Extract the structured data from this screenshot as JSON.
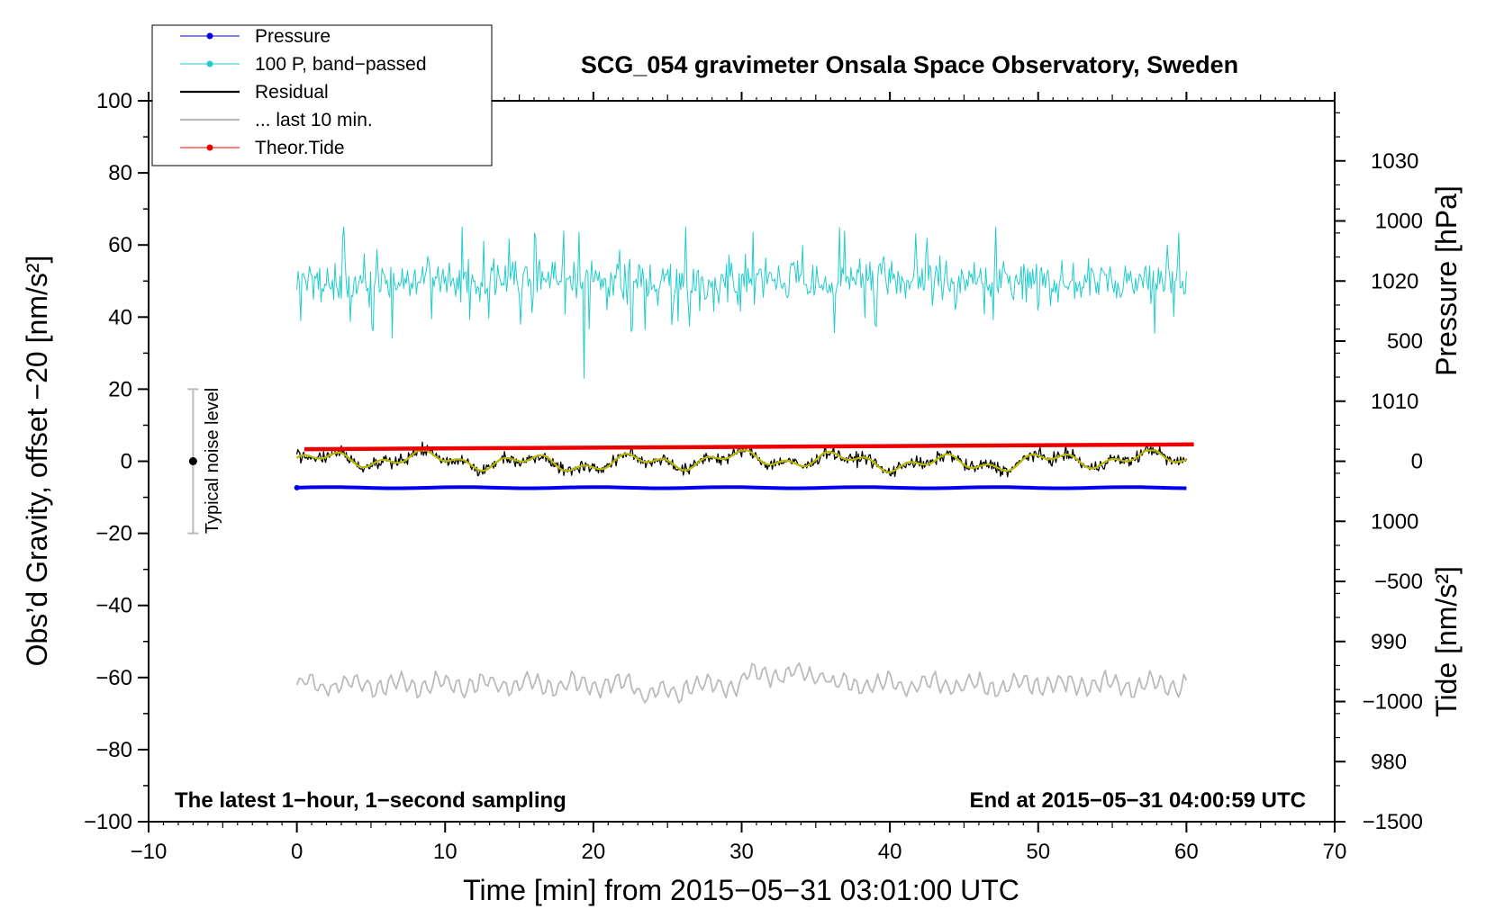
{
  "chart_data": {
    "type": "line",
    "title": "SCG_054 gravimeter Onsala Space Observatory, Sweden",
    "xlabel": "Time [min] from 2015−05−31 03:01:00 UTC",
    "ylabel": "Obs’d Gravity, offset −20 [nm/s²]",
    "ylabel_right_pressure": "Pressure [hPa]",
    "ylabel_right_tide": "Tide [nm/s²]",
    "xlim": [
      -10,
      70
    ],
    "ylim": [
      -100,
      100
    ],
    "pressure_axis": {
      "min": 975,
      "max": 1035
    },
    "tide_axis": {
      "min": -1500,
      "max": 1500
    },
    "x_ticks": [
      -10,
      0,
      10,
      20,
      30,
      40,
      50,
      60,
      70
    ],
    "x_tick_labels": [
      "−10",
      "0",
      "10",
      "20",
      "30",
      "40",
      "50",
      "60",
      "70"
    ],
    "y_ticks": [
      -100,
      -80,
      -60,
      -40,
      -20,
      0,
      20,
      40,
      60,
      80,
      100
    ],
    "y_tick_labels": [
      "−100",
      "−80",
      "−60",
      "−40",
      "−20",
      "0",
      "20",
      "40",
      "60",
      "80",
      "100"
    ],
    "pressure_ticks": [
      980,
      990,
      1000,
      1010,
      1020,
      1030
    ],
    "pressure_tick_labels": [
      "980",
      "990",
      "1000",
      "1010",
      "1020",
      "1030"
    ],
    "tide_ticks": [
      -1500,
      -1000,
      -500,
      0,
      500,
      1000
    ],
    "tide_tick_labels": [
      "−1500",
      "−1000",
      "−500",
      "0",
      "500",
      "1000"
    ],
    "legend_position": "top-left",
    "legend": [
      {
        "label": "Pressure",
        "color": "#0000ee",
        "marker": true
      },
      {
        "label": "100 P, band−passed",
        "color": "#22cccc",
        "marker": true
      },
      {
        "label": "Residual",
        "color": "#000000",
        "marker": false
      },
      {
        "label": "... last 10 min.",
        "color": "#bbbbbb",
        "marker": false
      },
      {
        "label": "Theor.Tide",
        "color": "#ee0000",
        "marker": true
      }
    ],
    "series": [
      {
        "name": "Pressure",
        "axis": "pressure",
        "color": "#0000ee",
        "x_start": 0,
        "x_end": 60,
        "values_start": 1002.8,
        "values_end": 1002.8
      },
      {
        "name": "100 P, band−passed",
        "axis": "gravity",
        "color": "#22cccc",
        "x_start": 0,
        "x_end": 60,
        "mean": 50,
        "range": [
          23,
          65
        ]
      },
      {
        "name": "Residual",
        "axis": "gravity",
        "color": "#000000",
        "x_start": 0,
        "x_end": 60,
        "mean": 0,
        "range": [
          -8,
          6
        ]
      },
      {
        "name": "Residual smoothed",
        "axis": "gravity",
        "color": "#b8b800",
        "x_start": 0,
        "x_end": 60,
        "mean": 0,
        "range": [
          -4,
          3
        ]
      },
      {
        "name": "... last 10 min.",
        "axis": "gravity",
        "color": "#bbbbbb",
        "x_start": 0,
        "x_end": 60,
        "mean": -62,
        "range": [
          -67,
          -56
        ]
      },
      {
        "name": "Theor.Tide",
        "axis": "tide",
        "color": "#ee0000",
        "x": [
          0.5,
          60.5
        ],
        "values": [
          50,
          70
        ]
      }
    ],
    "annotations": {
      "noise_label": "Typical noise level",
      "noise_x": -7,
      "noise_range": [
        -20,
        20
      ],
      "bottom_left": "The latest 1−hour, 1−second sampling",
      "bottom_right": "End at 2015−05−31 04:00:59 UTC"
    }
  }
}
